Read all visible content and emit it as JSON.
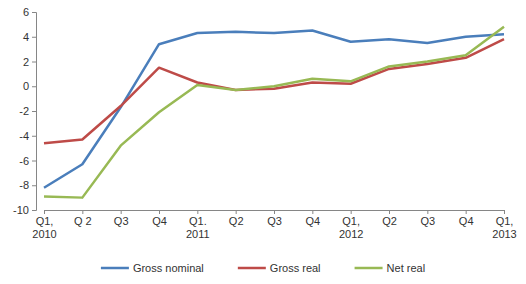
{
  "chart_data": {
    "type": "line",
    "categories": [
      "Q1,\n2010",
      "Q 2",
      "Q3",
      "Q4",
      "Q1.\n2011",
      "Q2",
      "Q3",
      "Q4",
      "Q1,\n2012",
      "Q2",
      "Q3",
      "Q4",
      "Q1,\n2013"
    ],
    "series": [
      {
        "name": "Gross nominal",
        "color": "#4a7ebb",
        "values": [
          -8.2,
          -6.3,
          -1.7,
          3.4,
          4.3,
          4.4,
          4.3,
          4.5,
          3.6,
          3.8,
          3.5,
          4.0,
          4.2
        ]
      },
      {
        "name": "Gross real",
        "color": "#be4b48",
        "values": [
          -4.6,
          -4.3,
          -1.6,
          1.5,
          0.3,
          -0.3,
          -0.2,
          0.3,
          0.2,
          1.4,
          1.8,
          2.3,
          3.8
        ]
      },
      {
        "name": "Net real",
        "color": "#98b954",
        "values": [
          -8.9,
          -9.0,
          -4.8,
          -2.1,
          0.1,
          -0.3,
          0.0,
          0.6,
          0.4,
          1.6,
          2.0,
          2.5,
          4.8
        ]
      }
    ],
    "ylim": [
      -10,
      6
    ],
    "yticks": [
      -10,
      -8,
      -6,
      -4,
      -2,
      0,
      2,
      4,
      6
    ],
    "grid": false,
    "legend": "bottom"
  }
}
